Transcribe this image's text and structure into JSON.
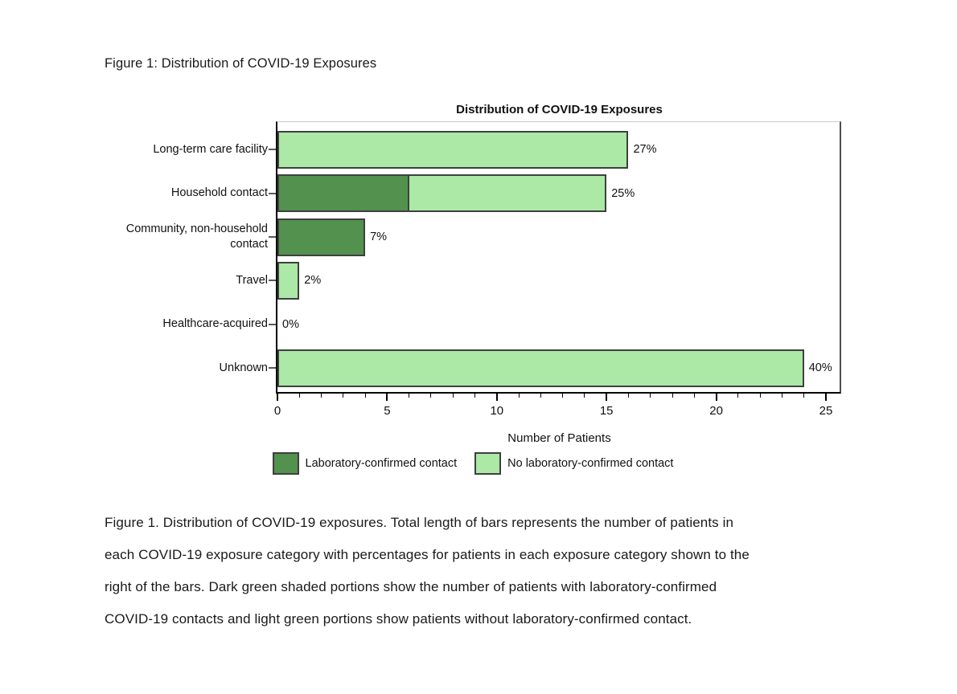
{
  "document": {
    "heading": "Figure 1: Distribution of COVID-19 Exposures",
    "caption_lines": [
      "Figure 1. Distribution of COVID-19 exposures. Total length of bars represents the number of patients in",
      "each COVID-19 exposure category with percentages for patients in each exposure category shown to the",
      "right of the bars. Dark green shaded portions show the number of patients with laboratory-confirmed",
      "COVID-19 contacts and light green portions show patients without laboratory-confirmed contact."
    ]
  },
  "chart_data": {
    "type": "bar",
    "orientation": "horizontal",
    "stacked": true,
    "title": "Distribution of COVID-19 Exposures",
    "xlabel": "Number of Patients",
    "xlim": [
      0,
      25.7
    ],
    "x_major_ticks": [
      0,
      5,
      10,
      15,
      20,
      25
    ],
    "x_minor_tick_interval": 1,
    "grid": false,
    "legend_position": "bottom",
    "categories": [
      "Long-term care facility",
      "Household contact",
      "Community, non-household contact",
      "Travel",
      "Healthcare-acquired",
      "Unknown"
    ],
    "series": [
      {
        "name": "Laboratory-confirmed contact",
        "color": "#52914e",
        "values": [
          0,
          6,
          4,
          0,
          0,
          0
        ]
      },
      {
        "name": "No laboratory-confirmed contact",
        "color": "#ace8a6",
        "values": [
          16,
          9,
          0,
          1,
          0,
          24
        ]
      }
    ],
    "bar_totals": [
      16,
      15,
      4,
      1,
      0,
      24
    ],
    "bar_labels": [
      "27%",
      "25%",
      "7%",
      "2%",
      "0%",
      "40%"
    ],
    "colors": {
      "bar_border": "#3f3f3f",
      "axis": "#000000",
      "wall_top_border": "#cbcbcb",
      "wall_right_border": "#4d4d4d",
      "y_tick": "#595959"
    }
  }
}
